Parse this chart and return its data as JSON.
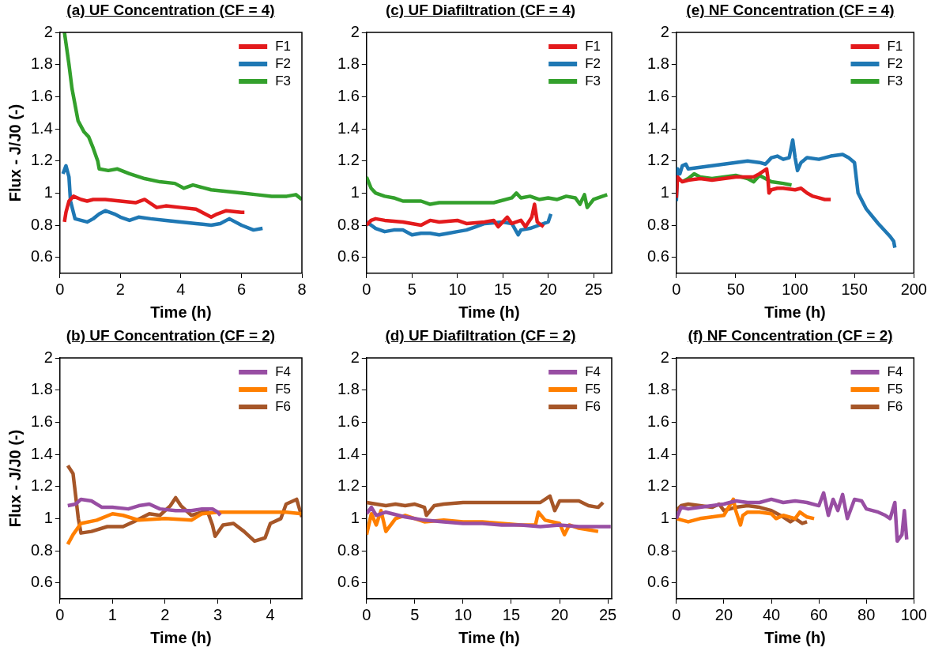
{
  "chart_data": [
    {
      "type": "line",
      "title": "(a) UF Concentration (CF = 4)",
      "xlabel": "Time (h)",
      "ylabel": "Flux - J/J0 (-)",
      "xlim": [
        0,
        8
      ],
      "xticks": [
        0,
        2,
        4,
        6,
        8
      ],
      "ylim": [
        0.5,
        2
      ],
      "yticks": [
        0.6,
        0.8,
        1,
        1.2,
        1.4,
        1.6,
        1.8,
        2
      ],
      "grid": false,
      "legend": "top right",
      "marker": "none",
      "line_style": "solid",
      "series": [
        {
          "name": "F1",
          "color": "#e31a1c",
          "x": [
            0.15,
            0.2,
            0.3,
            0.45,
            0.7,
            0.9,
            1.1,
            1.5,
            2,
            2.5,
            2.8,
            3.2,
            3.5,
            4,
            4.5,
            4.8,
            5,
            5.2,
            5.5,
            6,
            6.1
          ],
          "values": [
            0.82,
            0.88,
            0.95,
            0.98,
            0.96,
            0.95,
            0.96,
            0.96,
            0.95,
            0.94,
            0.96,
            0.91,
            0.92,
            0.91,
            0.9,
            0.87,
            0.85,
            0.87,
            0.89,
            0.88,
            0.88
          ]
        },
        {
          "name": "F2",
          "color": "#1f78b4",
          "x": [
            0.1,
            0.2,
            0.3,
            0.35,
            0.5,
            0.7,
            0.9,
            1.1,
            1.3,
            1.5,
            1.8,
            2,
            2.3,
            2.6,
            3,
            3.5,
            4,
            4.5,
            5,
            5.3,
            5.6,
            6,
            6.4,
            6.7
          ],
          "values": [
            1.12,
            1.17,
            1.1,
            0.95,
            0.84,
            0.83,
            0.82,
            0.84,
            0.87,
            0.89,
            0.87,
            0.85,
            0.83,
            0.85,
            0.84,
            0.83,
            0.82,
            0.81,
            0.8,
            0.81,
            0.84,
            0.8,
            0.77,
            0.78
          ]
        },
        {
          "name": "F3",
          "color": "#33a02c",
          "x": [
            0.15,
            0.3,
            0.4,
            0.5,
            0.6,
            0.8,
            0.95,
            1.1,
            1.25,
            1.3,
            1.6,
            1.9,
            2.3,
            2.8,
            3.3,
            3.8,
            4.1,
            4.4,
            5,
            5.5,
            6,
            6.5,
            7,
            7.5,
            7.8,
            8
          ],
          "values": [
            2,
            1.8,
            1.65,
            1.55,
            1.45,
            1.38,
            1.35,
            1.28,
            1.2,
            1.15,
            1.14,
            1.15,
            1.12,
            1.09,
            1.07,
            1.06,
            1.03,
            1.05,
            1.02,
            1.01,
            1,
            0.99,
            0.98,
            0.98,
            0.99,
            0.96
          ]
        }
      ]
    },
    {
      "type": "line",
      "title": "(c) UF Diafiltration (CF = 4)",
      "xlabel": "Time (h)",
      "xlim": [
        0,
        27
      ],
      "xticks": [
        0,
        5,
        10,
        15,
        20,
        25
      ],
      "ylim": [
        0.5,
        2
      ],
      "yticks": [
        0.6,
        0.8,
        1,
        1.2,
        1.4,
        1.6,
        1.8,
        2
      ],
      "grid": false,
      "legend": "top right",
      "marker": "none",
      "line_style": "solid",
      "series": [
        {
          "name": "F1",
          "color": "#e31a1c",
          "x": [
            0,
            0.5,
            1,
            2,
            4,
            5,
            6,
            7,
            8,
            10,
            11,
            13,
            14,
            14.5,
            15.5,
            16,
            17,
            17.5,
            18.2,
            18.5,
            18.8,
            19.5
          ],
          "values": [
            0.8,
            0.83,
            0.84,
            0.83,
            0.82,
            0.81,
            0.8,
            0.83,
            0.82,
            0.83,
            0.81,
            0.82,
            0.83,
            0.79,
            0.85,
            0.81,
            0.83,
            0.79,
            0.85,
            0.93,
            0.82,
            0.79
          ]
        },
        {
          "name": "F2",
          "color": "#1f78b4",
          "x": [
            0,
            1,
            2,
            3,
            4,
            5,
            6,
            7,
            8,
            9,
            10,
            11,
            12,
            13,
            15,
            16,
            16.7,
            17,
            18,
            19,
            20,
            20.3
          ],
          "values": [
            0.82,
            0.78,
            0.76,
            0.77,
            0.77,
            0.74,
            0.75,
            0.75,
            0.74,
            0.75,
            0.76,
            0.77,
            0.79,
            0.81,
            0.82,
            0.81,
            0.74,
            0.77,
            0.78,
            0.8,
            0.82,
            0.87
          ]
        },
        {
          "name": "F3",
          "color": "#33a02c",
          "x": [
            0,
            0.5,
            1,
            2,
            3,
            4,
            6,
            7,
            8,
            10,
            12,
            14,
            16,
            16.5,
            17,
            18,
            19,
            20,
            21,
            22,
            23,
            23.5,
            24,
            24.3,
            25,
            26,
            26.5
          ],
          "values": [
            1.1,
            1.03,
            1,
            0.98,
            0.97,
            0.95,
            0.95,
            0.93,
            0.94,
            0.94,
            0.94,
            0.94,
            0.97,
            1,
            0.97,
            0.98,
            0.96,
            0.97,
            0.96,
            0.98,
            0.97,
            0.93,
            0.99,
            0.91,
            0.96,
            0.98,
            0.99
          ]
        }
      ]
    },
    {
      "type": "line",
      "title": "(e) NF Concentration (CF = 4)",
      "xlabel": "Time (h)",
      "xlim": [
        0,
        200
      ],
      "xticks": [
        0,
        50,
        100,
        150,
        200
      ],
      "ylim": [
        0.5,
        2
      ],
      "yticks": [
        0.6,
        0.8,
        1,
        1.2,
        1.4,
        1.6,
        1.8,
        2
      ],
      "grid": false,
      "legend": "top right",
      "marker": "none",
      "line_style": "solid",
      "series": [
        {
          "name": "F1",
          "color": "#e31a1c",
          "x": [
            0,
            1,
            5,
            10,
            20,
            30,
            40,
            50,
            60,
            65,
            70,
            76,
            77,
            78,
            80,
            85,
            90,
            100,
            105,
            110,
            115,
            120,
            125,
            130
          ],
          "values": [
            0.97,
            1.1,
            1.07,
            1.08,
            1.09,
            1.08,
            1.09,
            1.1,
            1.1,
            1.1,
            1.12,
            1.15,
            1.1,
            1,
            1.02,
            1.03,
            1.03,
            1.02,
            1.03,
            1,
            0.98,
            0.97,
            0.96,
            0.96
          ]
        },
        {
          "name": "F2",
          "color": "#1f78b4",
          "x": [
            0,
            1,
            3,
            5,
            8,
            10,
            20,
            30,
            40,
            50,
            60,
            70,
            75,
            80,
            85,
            90,
            95,
            98,
            100,
            102,
            105,
            110,
            120,
            130,
            140,
            145,
            150,
            153,
            160,
            170,
            180,
            183,
            184
          ],
          "values": [
            0.95,
            1.15,
            1.12,
            1.17,
            1.18,
            1.15,
            1.16,
            1.17,
            1.18,
            1.19,
            1.2,
            1.19,
            1.18,
            1.22,
            1.23,
            1.21,
            1.22,
            1.33,
            1.22,
            1.14,
            1.19,
            1.22,
            1.21,
            1.23,
            1.24,
            1.22,
            1.19,
            1,
            0.9,
            0.81,
            0.73,
            0.7,
            0.66
          ]
        },
        {
          "name": "F3",
          "color": "#33a02c",
          "x": [
            5,
            10,
            15,
            20,
            30,
            40,
            50,
            60,
            65,
            70,
            80,
            90,
            97
          ],
          "values": [
            1.07,
            1.09,
            1.12,
            1.1,
            1.09,
            1.1,
            1.11,
            1.09,
            1.07,
            1.11,
            1.07,
            1.06,
            1.05
          ]
        }
      ]
    },
    {
      "type": "line",
      "title": "(b) UF Concentration (CF = 2)",
      "xlabel": "Time (h)",
      "ylabel": "Flux - J/J0 (-)",
      "xlim": [
        0,
        4.6
      ],
      "xticks": [
        0,
        1,
        2,
        3,
        4
      ],
      "ylim": [
        0.5,
        2
      ],
      "yticks": [
        0.6,
        0.8,
        1,
        1.2,
        1.4,
        1.6,
        1.8,
        2
      ],
      "grid": false,
      "legend": "top right",
      "marker": "none",
      "line_style": "solid",
      "series": [
        {
          "name": "F4",
          "color": "#984ea3",
          "x": [
            0.15,
            0.3,
            0.4,
            0.6,
            0.8,
            1,
            1.3,
            1.5,
            1.7,
            1.9,
            2.2,
            2.5,
            2.7,
            2.9,
            3,
            3.05
          ],
          "values": [
            1.08,
            1.09,
            1.12,
            1.11,
            1.07,
            1.07,
            1.06,
            1.08,
            1.09,
            1.06,
            1.05,
            1.05,
            1.06,
            1.06,
            1.04,
            1.02
          ]
        },
        {
          "name": "F5",
          "color": "#ff7f00",
          "x": [
            0.15,
            0.25,
            0.4,
            0.7,
            1,
            1.2,
            1.5,
            2,
            2.5,
            2.7,
            3,
            3.5,
            4,
            4.3,
            4.6
          ],
          "values": [
            0.84,
            0.9,
            0.97,
            0.99,
            1.03,
            1.02,
            0.99,
            1,
            0.99,
            1.03,
            1.04,
            1.04,
            1.04,
            1.04,
            1.03
          ]
        },
        {
          "name": "F6",
          "color": "#a65628",
          "x": [
            0.15,
            0.25,
            0.35,
            0.4,
            0.6,
            0.9,
            1.2,
            1.4,
            1.7,
            1.9,
            2.1,
            2.2,
            2.3,
            2.5,
            2.8,
            2.9,
            2.95,
            3.1,
            3.3,
            3.5,
            3.7,
            3.9,
            4,
            4.2,
            4.3,
            4.5,
            4.6
          ],
          "values": [
            1.33,
            1.28,
            1,
            0.91,
            0.92,
            0.95,
            0.95,
            0.98,
            1.03,
            1.02,
            1.08,
            1.13,
            1.08,
            1.02,
            1.05,
            0.96,
            0.89,
            0.96,
            0.97,
            0.92,
            0.86,
            0.88,
            0.97,
            1,
            1.09,
            1.12,
            1.01
          ]
        }
      ]
    },
    {
      "type": "line",
      "title": "(d) UF Diafiltration (CF = 2)",
      "xlabel": "Time (h)",
      "xlim": [
        0,
        25.4
      ],
      "xticks": [
        0,
        5,
        10,
        15,
        20,
        25
      ],
      "ylim": [
        0.5,
        2
      ],
      "yticks": [
        0.6,
        0.8,
        1,
        1.2,
        1.4,
        1.6,
        1.8,
        2
      ],
      "grid": false,
      "legend": "top right",
      "marker": "none",
      "line_style": "solid",
      "series": [
        {
          "name": "F4",
          "color": "#984ea3",
          "x": [
            0,
            0.5,
            1,
            2,
            4,
            6,
            8,
            10,
            12,
            14,
            16,
            18,
            20,
            22,
            24,
            25.3
          ],
          "values": [
            1.03,
            1.07,
            1.02,
            1.04,
            1.01,
            0.99,
            0.98,
            0.97,
            0.97,
            0.96,
            0.96,
            0.95,
            0.96,
            0.95,
            0.95,
            0.95
          ]
        },
        {
          "name": "F5",
          "color": "#ff7f00",
          "x": [
            0,
            0.5,
            1,
            1.5,
            2,
            3,
            4,
            5,
            6,
            8,
            10,
            12,
            14,
            16,
            17.5,
            17.8,
            18.5,
            20,
            20.5,
            21,
            22,
            23,
            24
          ],
          "values": [
            0.9,
            1.03,
            0.96,
            1.05,
            0.92,
            1,
            1.02,
            1,
            0.98,
            0.99,
            0.98,
            0.98,
            0.97,
            0.96,
            0.96,
            1.04,
            0.99,
            0.97,
            0.9,
            0.96,
            0.94,
            0.93,
            0.92
          ]
        },
        {
          "name": "F6",
          "color": "#a65628",
          "x": [
            0,
            1,
            2,
            3,
            4,
            5,
            6,
            6.2,
            7,
            8,
            10,
            12,
            14,
            16,
            18,
            19,
            19.5,
            20,
            22,
            23,
            24,
            24.5
          ],
          "values": [
            1.1,
            1.09,
            1.08,
            1.09,
            1.08,
            1.09,
            1.07,
            1.02,
            1.08,
            1.09,
            1.1,
            1.1,
            1.1,
            1.1,
            1.1,
            1.14,
            1.05,
            1.11,
            1.11,
            1.08,
            1.07,
            1.1
          ]
        }
      ]
    },
    {
      "type": "line",
      "title": "(f) NF Concentration (CF = 2)",
      "xlabel": "Time (h)",
      "xlim": [
        0,
        100
      ],
      "xticks": [
        0,
        20,
        40,
        60,
        80,
        100
      ],
      "ylim": [
        0.5,
        2
      ],
      "yticks": [
        0.6,
        0.8,
        1,
        1.2,
        1.4,
        1.6,
        1.8,
        2
      ],
      "grid": false,
      "legend": "top right",
      "marker": "none",
      "line_style": "solid",
      "series": [
        {
          "name": "F4",
          "color": "#984ea3",
          "x": [
            0,
            2,
            5,
            10,
            15,
            20,
            25,
            30,
            35,
            40,
            45,
            50,
            55,
            60,
            62,
            64,
            66,
            68,
            70,
            72,
            75,
            78,
            80,
            85,
            88,
            90,
            92,
            93,
            95,
            96,
            97
          ],
          "values": [
            1,
            1.07,
            1.06,
            1.07,
            1.08,
            1.09,
            1.11,
            1.1,
            1.1,
            1.12,
            1.1,
            1.11,
            1.1,
            1.08,
            1.16,
            1.02,
            1.12,
            1.05,
            1.15,
            1,
            1.12,
            1.11,
            1.06,
            1.04,
            1.02,
            1,
            1.1,
            0.86,
            0.9,
            1.05,
            0.87
          ]
        },
        {
          "name": "F5",
          "color": "#ff7f00",
          "x": [
            0,
            5,
            10,
            15,
            20,
            24,
            25,
            27,
            28,
            30,
            35,
            40,
            42,
            45,
            50,
            52,
            55,
            58
          ],
          "values": [
            1,
            0.98,
            1,
            1.01,
            1.02,
            1.12,
            1.05,
            0.96,
            1.02,
            1.04,
            1.04,
            1.03,
            1,
            1.02,
            1,
            1.04,
            1.01,
            1
          ]
        },
        {
          "name": "F6",
          "color": "#a65628",
          "x": [
            0,
            2,
            5,
            10,
            15,
            18,
            20,
            25,
            30,
            35,
            40,
            45,
            48,
            50,
            53,
            55
          ],
          "values": [
            1.05,
            1.08,
            1.09,
            1.08,
            1.07,
            1.09,
            1.05,
            1.07,
            1.08,
            1.07,
            1.05,
            1.01,
            0.98,
            1,
            0.97,
            0.98
          ]
        }
      ]
    }
  ]
}
